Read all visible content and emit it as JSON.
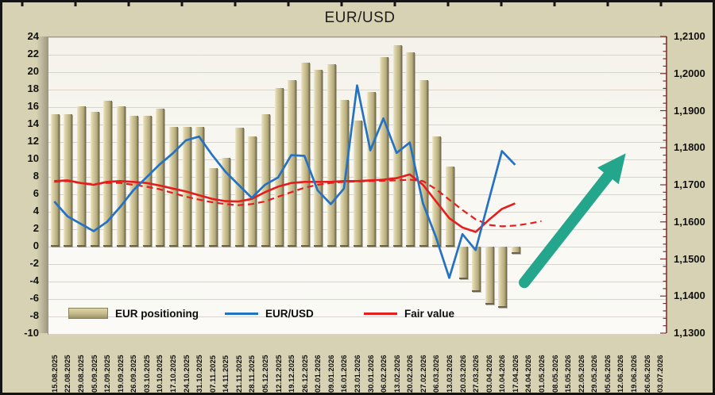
{
  "figure": {
    "title": "EUR/USD"
  },
  "chart_data": {
    "type": "combo",
    "title": "EUR/USD",
    "x_labels": [
      "15.08.2025",
      "22.08.2025",
      "29.08.2025",
      "05.09.2025",
      "12.09.2025",
      "19.09.2025",
      "26.09.2025",
      "03.10.2025",
      "10.10.2025",
      "17.10.2025",
      "24.10.2025",
      "31.10.2025",
      "07.11.2025",
      "14.11.2025",
      "21.11.2025",
      "28.11.2025",
      "05.12.2025",
      "12.12.2025",
      "19.12.2025",
      "26.12.2025",
      "02.01.2026",
      "09.01.2026",
      "16.01.2026",
      "23.01.2026",
      "30.01.2026",
      "06.02.2026",
      "13.02.2026",
      "20.02.2026",
      "27.02.2026",
      "06.03.2026",
      "13.03.2026",
      "20.03.2026",
      "27.03.2026",
      "03.04.2026",
      "10.04.2026",
      "17.04.2026",
      "24.04.2026",
      "01.05.2026",
      "08.05.2026",
      "15.05.2026",
      "22.05.2026",
      "29.05.2026",
      "05.06.2026",
      "12.06.2026",
      "19.06.2026",
      "26.06.2026",
      "03.07.2026"
    ],
    "left_axis": {
      "min": -10,
      "max": 24,
      "step": 2,
      "tick_labels": [
        "24",
        "22",
        "20",
        "18",
        "16",
        "14",
        "12",
        "10",
        "8",
        "6",
        "4",
        "2",
        "0",
        "-2",
        "-4",
        "-6",
        "-8",
        "-10"
      ]
    },
    "right_axis": {
      "min": 1.13,
      "max": 1.21,
      "step": 0.01,
      "tick_labels": [
        "1,2100",
        "1,2000",
        "1,1900",
        "1,1800",
        "1,1700",
        "1,1600",
        "1,1500",
        "1,1400",
        "1,1300"
      ]
    },
    "series": [
      {
        "name": "EUR positioning",
        "type": "bar",
        "axis": "left",
        "color": "#c9bf92",
        "values": [
          15.2,
          15.2,
          16.1,
          15.5,
          16.7,
          16.1,
          15.0,
          15.0,
          15.8,
          13.7,
          13.7,
          13.7,
          9.0,
          10.2,
          13.6,
          12.6,
          15.2,
          18.2,
          19.1,
          21.1,
          20.3,
          20.9,
          16.8,
          14.5,
          17.7,
          21.7,
          23.1,
          22.3,
          19.1,
          12.6,
          9.2,
          -3.7,
          -5.2,
          -6.6,
          -7.0,
          -0.8
        ]
      },
      {
        "name": "EUR/USD",
        "type": "line",
        "axis": "right",
        "color": "#2472c2",
        "values": [
          1.1655,
          1.1615,
          1.1595,
          1.1575,
          1.16,
          1.164,
          1.1685,
          1.172,
          1.1755,
          1.1785,
          1.182,
          1.183,
          1.178,
          1.1735,
          1.17,
          1.1665,
          1.17,
          1.172,
          1.178,
          1.1778,
          1.1685,
          1.1648,
          1.169,
          1.1968,
          1.1793,
          1.1879,
          1.1786,
          1.1814,
          1.165,
          1.1558,
          1.1449,
          1.1567,
          1.1524,
          1.1658,
          1.1791,
          1.1754
        ]
      },
      {
        "name": "Fair value",
        "type": "line",
        "axis": "right",
        "color": "#e51d1d",
        "values": [
          1.171,
          1.1712,
          1.1705,
          1.17,
          1.1708,
          1.171,
          1.1708,
          1.1705,
          1.1698,
          1.169,
          1.1682,
          1.1672,
          1.1662,
          1.1656,
          1.1655,
          1.1662,
          1.168,
          1.1695,
          1.1705,
          1.1708,
          1.1708,
          1.1708,
          1.171,
          1.171,
          1.1712,
          1.1714,
          1.1718,
          1.1728,
          1.17,
          1.1655,
          1.161,
          1.1585,
          1.1573,
          1.1605,
          1.1635,
          1.165
        ]
      },
      {
        "name": "Fair value forecast",
        "type": "line",
        "style": "dashed",
        "axis": "right",
        "color": "#e51d1d",
        "values": [
          1.1708,
          1.171,
          1.1705,
          1.1702,
          1.1705,
          1.1705,
          1.17,
          1.1695,
          1.1688,
          1.1678,
          1.1668,
          1.166,
          1.1653,
          1.1648,
          1.1645,
          1.1648,
          1.1655,
          1.1668,
          1.168,
          1.1692,
          1.17,
          1.1705,
          1.1708,
          1.1709,
          1.171,
          1.1711,
          1.1712,
          1.1714,
          1.171,
          1.1688,
          1.166,
          1.1632,
          1.1607,
          1.1592,
          1.1588,
          1.159,
          1.1595,
          1.1602
        ]
      }
    ],
    "annotations": [
      {
        "type": "arrow-up-right",
        "color": "#23a68b",
        "from_slot": 36.2,
        "from_left_value": -4.2,
        "to_slot": 43.9,
        "to_left_value": 10.6
      }
    ],
    "legend": {
      "position": "inside-bottom-left",
      "items": [
        {
          "swatch": "bar",
          "label": "EUR positioning"
        },
        {
          "swatch": "line-blue",
          "label": "EUR/USD"
        },
        {
          "swatch": "line-red",
          "label": "Fair value"
        }
      ]
    },
    "grid": "horizontal",
    "layout_hint": "bars on left axis -10..24; lines on right price axis 1,1300..1,2100"
  }
}
